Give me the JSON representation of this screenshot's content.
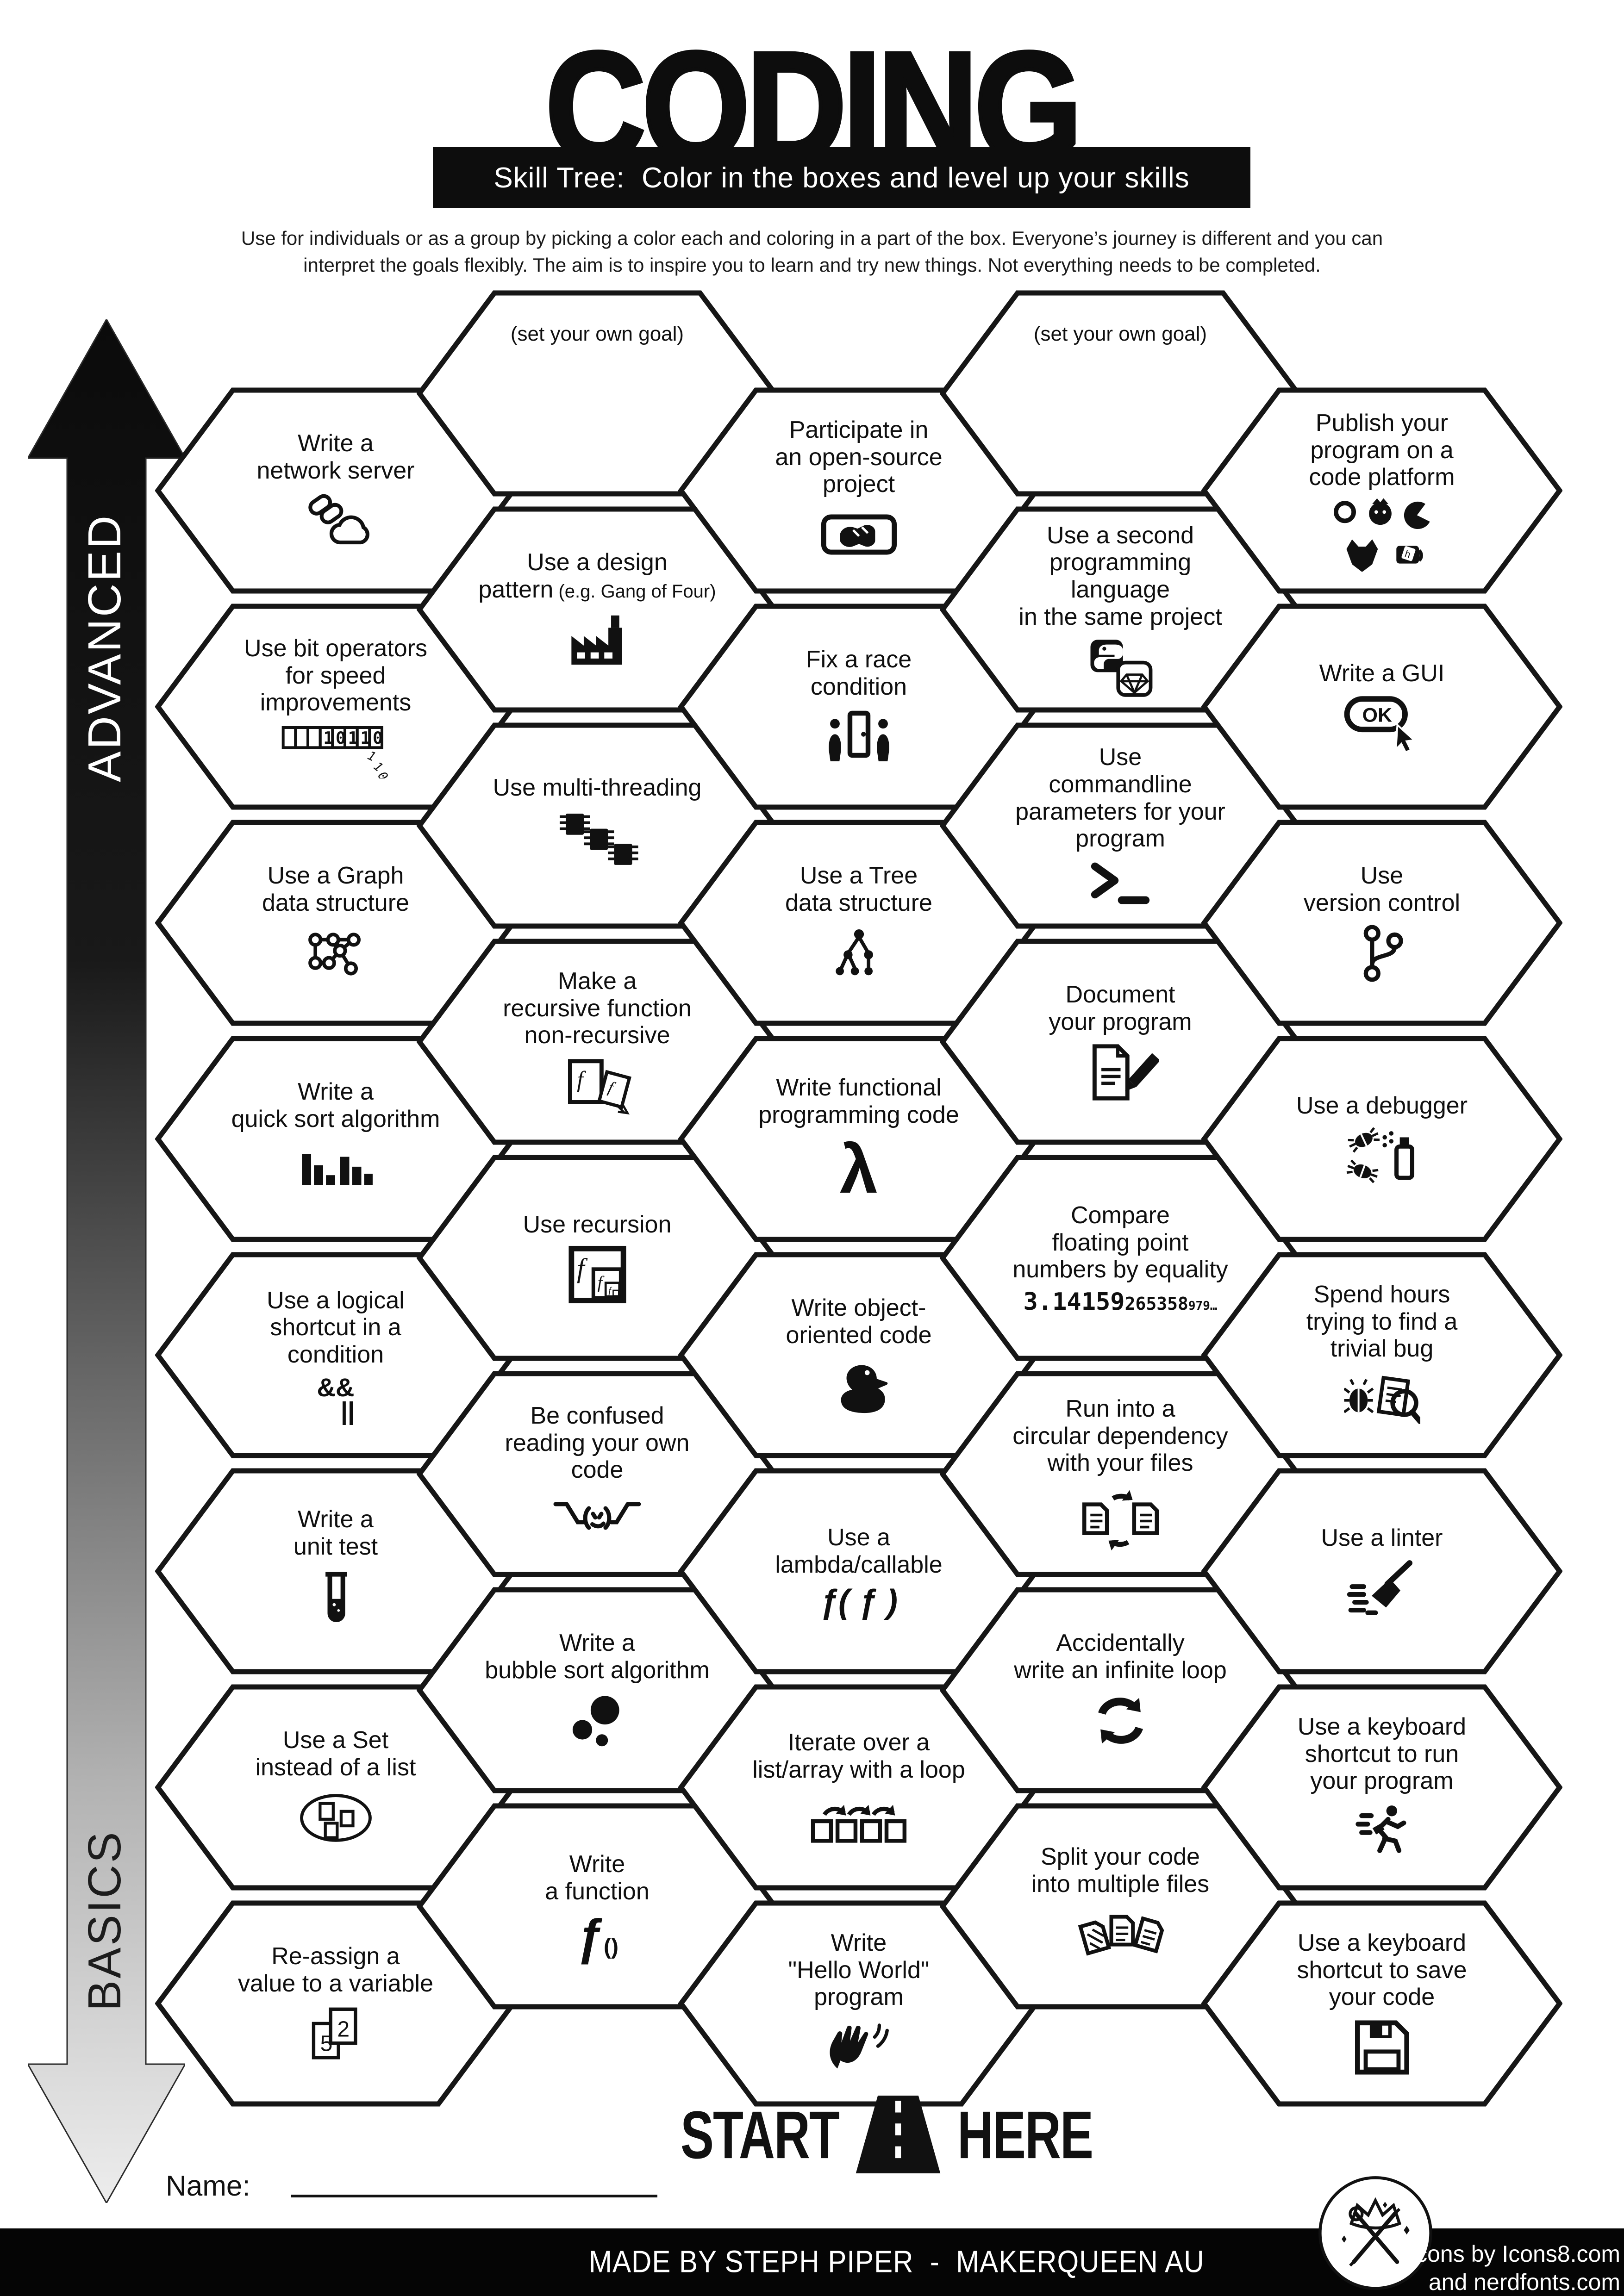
{
  "title": "CODING",
  "banner": "Skill Tree:  Color in the boxes and level up your skills",
  "intro_line1": "Use for individuals or as a group by picking a color each and coloring in a part of the box.  Everyone’s journey is different and you can",
  "intro_line2": "interpret the goals flexibly.  The aim is to inspire you to learn and try new things. Not everything needs to be completed.",
  "axis": {
    "advanced": "ADVANCED",
    "basics": "BASICS"
  },
  "columns": [
    {
      "cells": [
        {
          "label": "Write a\nnetwork server",
          "icon": "network-cloud"
        },
        {
          "label": "Use bit operators\nfor speed improvements",
          "icon": "bit-register"
        },
        {
          "label": "Use a Graph\ndata structure",
          "icon": "graph-nodes"
        },
        {
          "label": "Write a\nquick sort algorithm",
          "icon": "sort-bars"
        },
        {
          "label": "Use a logical\nshortcut in a\ncondition",
          "icon_text": "&&",
          "icon_text2": "||"
        },
        {
          "label": "Write a\nunit test",
          "icon": "test-tube"
        },
        {
          "label": "Use a Set\ninstead of a list",
          "icon": "set-ellipse"
        },
        {
          "label": "Re-assign a\nvalue to a variable",
          "icon": "reassign-cards"
        }
      ]
    },
    {
      "cells": [
        {
          "label": "(set your own goal)",
          "goal": true
        },
        {
          "label": "Use a design\npattern",
          "label_small": " (e.g. Gang of Four)",
          "icon": "factory"
        },
        {
          "label": "Use multi-threading",
          "icon": "chips"
        },
        {
          "label": "Make a\nrecursive function\nnon-recursive",
          "icon": "recursive-pages"
        },
        {
          "label": "Use recursion",
          "icon": "recursion-nested"
        },
        {
          "label": "Be confused\nreading your own\ncode",
          "icon": "shrug",
          "emoticon": "¯\\_(ツ)_/¯"
        },
        {
          "label": "Write a\nbubble sort algorithm",
          "icon": "bubbles"
        },
        {
          "label": "Write\na function",
          "icon_text": "ƒ",
          "icon_text2": "()"
        }
      ]
    },
    {
      "cells": [
        {
          "label": "Participate in\nan open-source\nproject",
          "icon": "handshake"
        },
        {
          "label": "Fix a race\ncondition",
          "icon": "race-door"
        },
        {
          "label": "Use a Tree\ndata structure",
          "icon": "tree-nodes"
        },
        {
          "label": "Write functional\nprogramming code",
          "icon_text": "λ"
        },
        {
          "label": "Write object-\noriented code",
          "icon": "duck"
        },
        {
          "label": "Use a\nlambda/callable",
          "icon_text": "ƒ( ƒ )"
        },
        {
          "label": "Iterate over a\nlist/array with a loop",
          "icon": "iterate-squares"
        },
        {
          "label": "Write\n\"Hello World\"\nprogram",
          "icon": "waving-hand"
        }
      ]
    },
    {
      "cells": [
        {
          "label": "(set your own goal)",
          "goal": true
        },
        {
          "label": "Use a second\nprogramming language\nin the same project",
          "icon": "python-gem"
        },
        {
          "label": "Use\ncommandline\nparameters for your\nprogram",
          "icon": "terminal-prompt"
        },
        {
          "label": "Document\nyour program",
          "icon": "document-pencil"
        },
        {
          "label": "Compare\nfloating point\nnumbers by equality",
          "icon_text": "3.14159",
          "icon_text2": "265358",
          "icon_text3": "979…"
        },
        {
          "label": "Run into a\ncircular dependency\nwith your files",
          "icon": "circular-files"
        },
        {
          "label": "Accidentally\nwrite an infinite loop",
          "icon": "infinite-loop"
        },
        {
          "label": "Split your code\ninto multiple files",
          "icon": "split-files"
        }
      ]
    },
    {
      "cells": [
        {
          "label": "Publish your\nprogram on a\ncode platform",
          "icon": "code-platforms"
        },
        {
          "label": "Write a GUI",
          "icon": "ok-cursor"
        },
        {
          "label": "Use\nversion control",
          "icon": "git-branch"
        },
        {
          "label": "Use a debugger",
          "icon": "bug-spray"
        },
        {
          "label": "Spend hours\ntrying to find a\ntrivial bug",
          "icon": "bug-magnifier"
        },
        {
          "label": "Use a linter",
          "icon": "broom"
        },
        {
          "label": "Use a keyboard\nshortcut to run\nyour program",
          "icon": "keyboard-run"
        },
        {
          "label": "Use a keyboard\nshortcut to save\nyour code",
          "icon": "floppy-disk"
        }
      ]
    }
  ],
  "start_here": {
    "start": "START",
    "here": "HERE"
  },
  "name_label": "Name:",
  "footer": {
    "credit": "MADE BY STEPH PIPER  -  MAKERQUEEN AU",
    "icons_line1": "Icons by Icons8.com",
    "icons_line2": "and nerdfonts.com"
  }
}
